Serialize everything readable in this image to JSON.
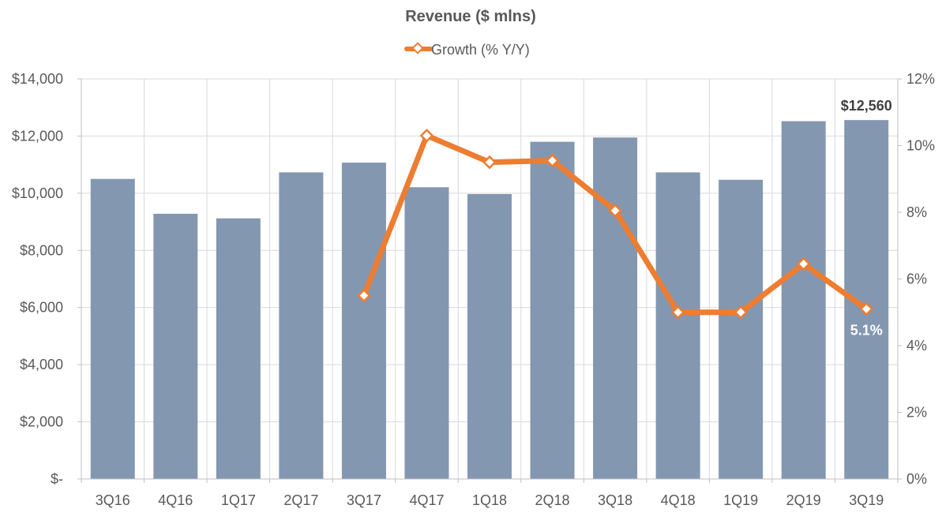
{
  "chart_data": {
    "type": "bar",
    "title": "Revenue ($ mlns)",
    "categories": [
      "3Q16",
      "4Q16",
      "1Q17",
      "2Q17",
      "3Q17",
      "4Q17",
      "1Q18",
      "2Q18",
      "3Q18",
      "4Q18",
      "1Q19",
      "2Q19",
      "3Q19"
    ],
    "series": [
      {
        "name": "",
        "type": "bar",
        "axis": "left",
        "color": "#8497b0",
        "values": [
          10500,
          9280,
          9120,
          10730,
          11070,
          10210,
          9970,
          11800,
          11950,
          10730,
          10470,
          12520,
          12560
        ]
      },
      {
        "name": "Growth (% Y/Y)",
        "type": "line",
        "axis": "right",
        "color": "#ed7d31",
        "values": [
          null,
          null,
          null,
          null,
          5.5,
          10.3,
          9.5,
          9.55,
          8.05,
          5.0,
          5.0,
          6.45,
          5.1
        ]
      }
    ],
    "y_left": {
      "min": 0,
      "max": 14000,
      "tick_labels": [
        "$-",
        "$2,000",
        "$4,000",
        "$6,000",
        "$8,000",
        "$10,000",
        "$12,000",
        "$14,000"
      ]
    },
    "y_right": {
      "min": 0,
      "max": 12,
      "tick_labels": [
        "0%",
        "2%",
        "4%",
        "6%",
        "8%",
        "10%",
        "12%"
      ]
    },
    "data_labels": {
      "last_bar": "$12,560",
      "last_growth": "5.1%"
    },
    "legend": {
      "position": "top",
      "label": "Growth (% Y/Y)"
    },
    "grid": true
  }
}
